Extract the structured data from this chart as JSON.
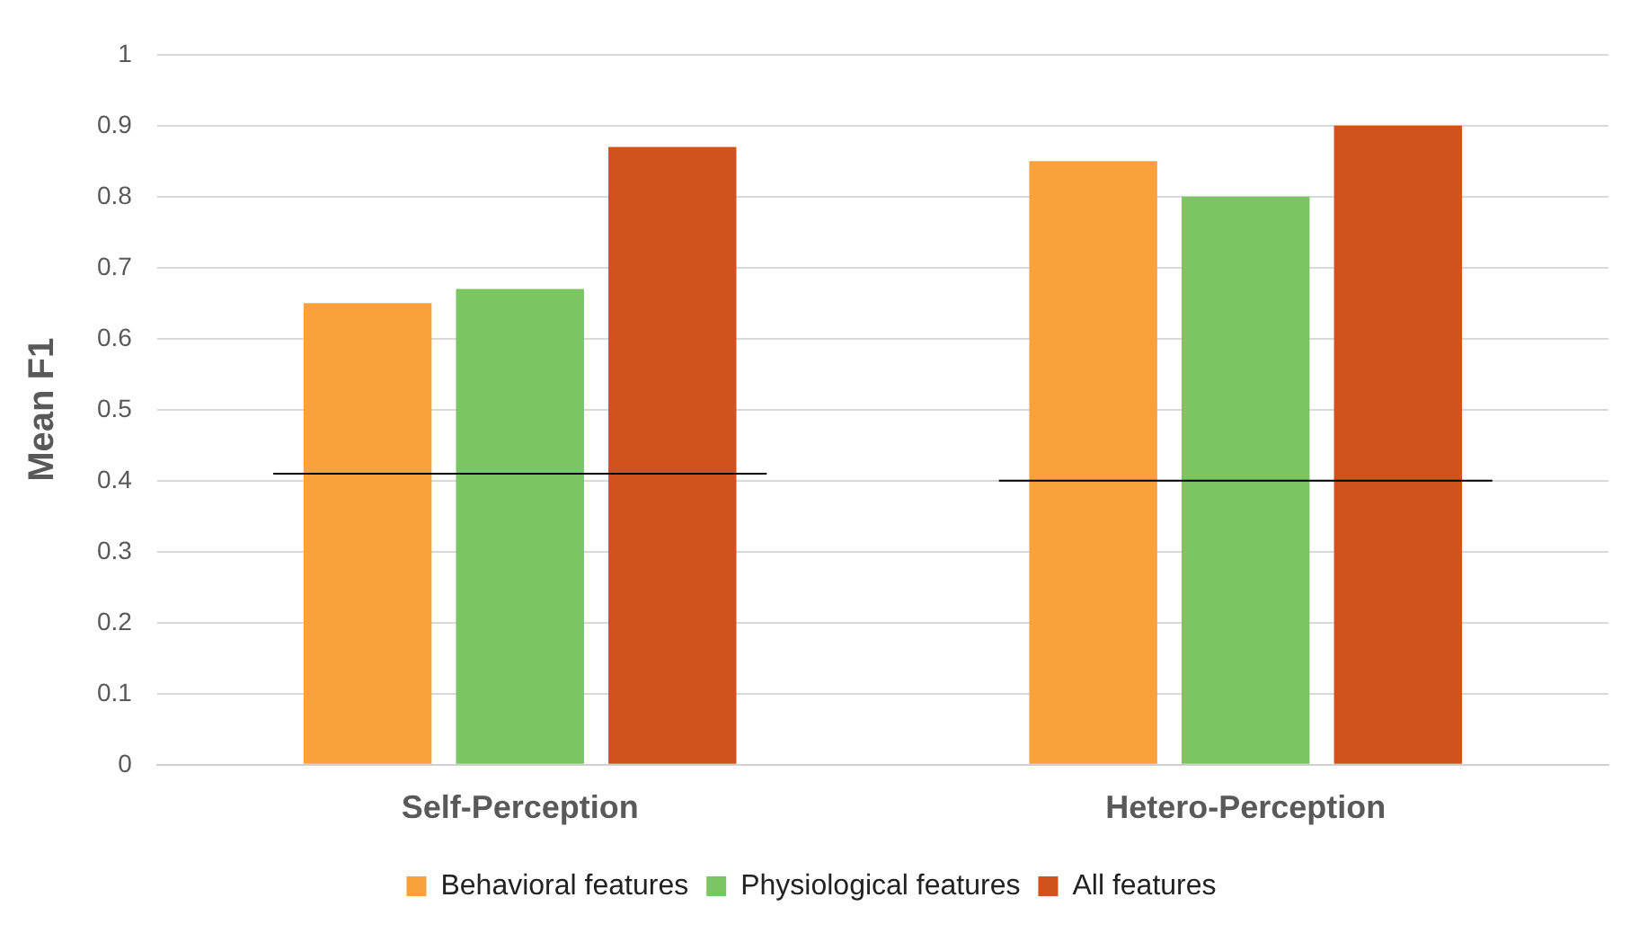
{
  "chart_data": {
    "type": "bar",
    "ylabel": "Mean F1",
    "categories": [
      "Self-Perception",
      "Hetero-Perception"
    ],
    "series": [
      {
        "name": "Behavioral features",
        "color": "#f9a13a",
        "values": [
          0.65,
          0.85
        ]
      },
      {
        "name": "Physiological features",
        "color": "#7bc563",
        "values": [
          0.67,
          0.8
        ]
      },
      {
        "name": "All features",
        "color": "#d2521d",
        "values": [
          0.87,
          0.9
        ]
      }
    ],
    "ylim": [
      0,
      1
    ],
    "yticks": [
      0,
      0.1,
      0.2,
      0.3,
      0.4,
      0.5,
      0.6,
      0.7,
      0.8,
      0.9,
      1
    ],
    "grid": "y",
    "legend": "bottom",
    "ref_lines": [
      {
        "axis": "y",
        "value": 0.41,
        "color": "#000000"
      },
      {
        "axis": "y",
        "value": 0.4,
        "color": "#000000"
      }
    ]
  }
}
